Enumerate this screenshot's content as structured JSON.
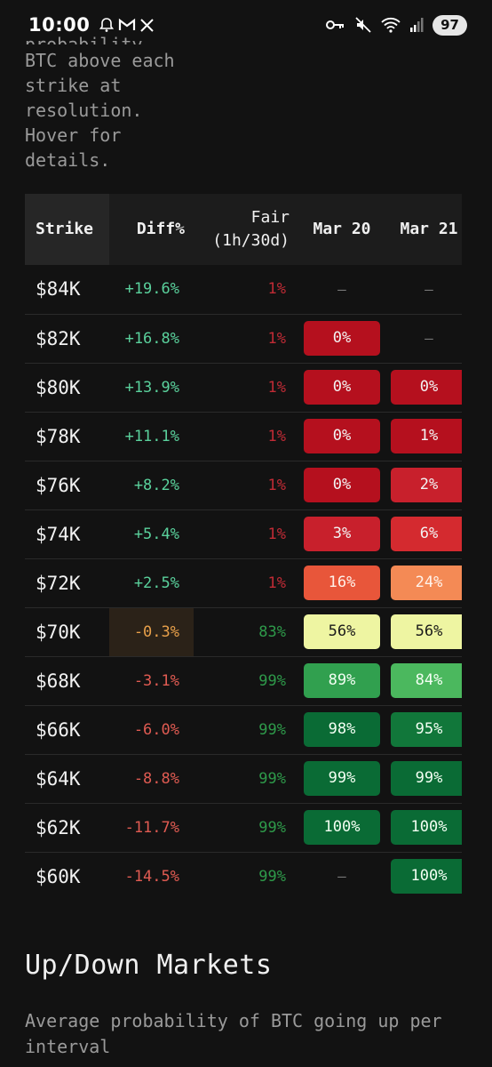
{
  "status_bar": {
    "time": "10:00",
    "battery": "97"
  },
  "intro": {
    "cut_text": "probability",
    "lines": [
      "BTC above each",
      "strike at",
      "resolution.",
      "Hover for",
      "details."
    ]
  },
  "table": {
    "headers": {
      "strike": "Strike",
      "diff": "Diff%",
      "fair_line1": "Fair",
      "fair_line2": "(1h/30d)",
      "date1": "Mar 20",
      "date2": "Mar 21",
      "date3": ""
    },
    "rows": [
      {
        "strike": "$84K",
        "diff": "+19.6%",
        "fair": "1%",
        "d1": "—",
        "d2": "—",
        "d3": ""
      },
      {
        "strike": "$82K",
        "diff": "+16.8%",
        "fair": "1%",
        "d1": "0%",
        "d2": "—",
        "d3": ""
      },
      {
        "strike": "$80K",
        "diff": "+13.9%",
        "fair": "1%",
        "d1": "0%",
        "d2": "0%",
        "d3": ""
      },
      {
        "strike": "$78K",
        "diff": "+11.1%",
        "fair": "1%",
        "d1": "0%",
        "d2": "1%",
        "d3": ""
      },
      {
        "strike": "$76K",
        "diff": "+8.2%",
        "fair": "1%",
        "d1": "0%",
        "d2": "2%",
        "d3": ""
      },
      {
        "strike": "$74K",
        "diff": "+5.4%",
        "fair": "1%",
        "d1": "3%",
        "d2": "6%",
        "d3": ""
      },
      {
        "strike": "$72K",
        "diff": "+2.5%",
        "fair": "1%",
        "d1": "16%",
        "d2": "24%",
        "d3": ""
      },
      {
        "strike": "$70K",
        "diff": "-0.3%",
        "fair": "83%",
        "d1": "56%",
        "d2": "56%",
        "d3": ""
      },
      {
        "strike": "$68K",
        "diff": "-3.1%",
        "fair": "99%",
        "d1": "89%",
        "d2": "84%",
        "d3": ""
      },
      {
        "strike": "$66K",
        "diff": "-6.0%",
        "fair": "99%",
        "d1": "98%",
        "d2": "95%",
        "d3": ""
      },
      {
        "strike": "$64K",
        "diff": "-8.8%",
        "fair": "99%",
        "d1": "99%",
        "d2": "99%",
        "d3": ""
      },
      {
        "strike": "$62K",
        "diff": "-11.7%",
        "fair": "99%",
        "d1": "100%",
        "d2": "100%",
        "d3": ""
      },
      {
        "strike": "$60K",
        "diff": "-14.5%",
        "fair": "99%",
        "d1": "—",
        "d2": "100%",
        "d3": ""
      }
    ]
  },
  "updown": {
    "title": "Up/Down Markets",
    "description": "Average probability of BTC going up per interval"
  },
  "colors": {
    "background": "#121212",
    "positive_diff": "#5ad19c",
    "negative_diff": "#e05b52",
    "near_diff": "#e8a04a",
    "low_prob": "#b5101e",
    "high_prob": "#0a6b35"
  }
}
